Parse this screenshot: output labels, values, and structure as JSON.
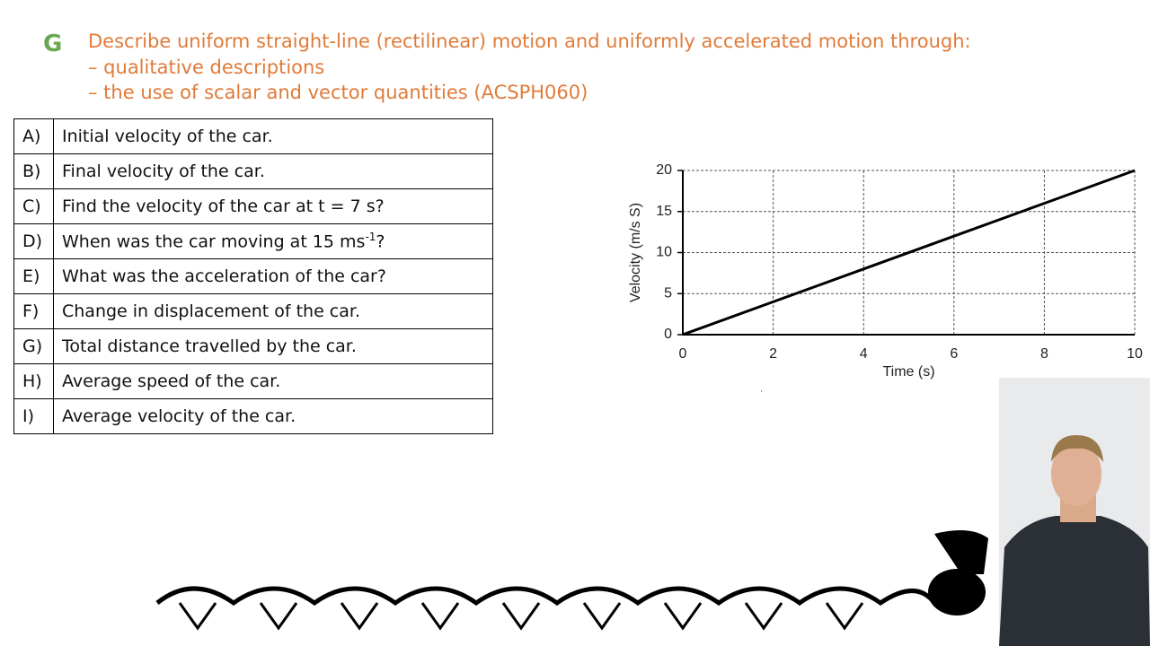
{
  "header": {
    "letter": "G",
    "lines": [
      "Describe uniform straight-line (rectilinear) motion and uniformly accelerated motion through:",
      "– qualitative descriptions",
      "– the use of scalar and vector quantities (ACSPH060)"
    ]
  },
  "table": {
    "rows": [
      [
        "A)",
        "Initial velocity of the car."
      ],
      [
        "B)",
        "Final velocity of the car."
      ],
      [
        "C)",
        "Find the velocity of the car at t = 7 s?"
      ],
      [
        "D)",
        {
          "text": "When was the car moving at 15 ms",
          "sup": "-1",
          "tail": "?"
        }
      ],
      [
        "E)",
        "What was the acceleration of the car?"
      ],
      [
        "F)",
        "Change in displacement of the car."
      ],
      [
        "G)",
        "Total distance travelled by the car."
      ],
      [
        "H)",
        "Average speed of the car."
      ],
      [
        "I)",
        "Average velocity of the car."
      ]
    ]
  },
  "chart_data": {
    "type": "line",
    "x_label": "Time (s)",
    "y_label": "Velocity (m/s S)",
    "x": [
      0,
      2,
      4,
      6,
      8,
      10
    ],
    "series": [
      {
        "name": "Velocity",
        "color": "#000000",
        "values": [
          0,
          4,
          8,
          12,
          16,
          20
        ]
      }
    ],
    "xlim": [
      0,
      10
    ],
    "ylim": [
      0,
      20
    ],
    "xticks": [
      0,
      2,
      4,
      6,
      8,
      10
    ],
    "yticks": [
      0,
      5,
      10,
      15,
      20
    ],
    "grid": true
  }
}
